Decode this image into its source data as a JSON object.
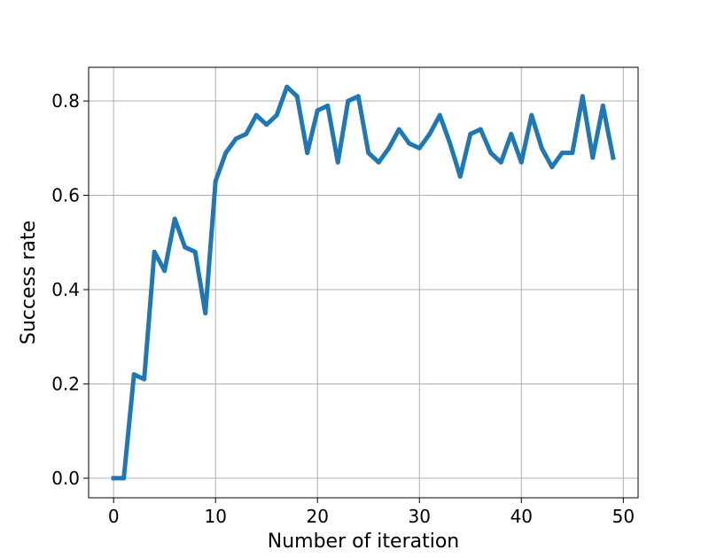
{
  "chart_data": {
    "type": "line",
    "title": "",
    "xlabel": "Number of iteration",
    "ylabel": "Success rate",
    "xlim": [
      -2.45,
      51.45
    ],
    "ylim": [
      -0.0415,
      0.8715
    ],
    "xticks": [
      0,
      10,
      20,
      30,
      40,
      50
    ],
    "yticks": [
      0.0,
      0.2,
      0.4,
      0.6,
      0.8
    ],
    "xtick_labels": [
      "0",
      "10",
      "20",
      "30",
      "40",
      "50"
    ],
    "ytick_labels": [
      "0.0",
      "0.2",
      "0.4",
      "0.6",
      "0.8"
    ],
    "grid": true,
    "legend": "none",
    "series": [
      {
        "color": "#1f77b4",
        "x": [
          0,
          1,
          2,
          3,
          4,
          5,
          6,
          7,
          8,
          9,
          10,
          11,
          12,
          13,
          14,
          15,
          16,
          17,
          18,
          19,
          20,
          21,
          22,
          23,
          24,
          25,
          26,
          27,
          28,
          29,
          30,
          31,
          32,
          33,
          34,
          35,
          36,
          37,
          38,
          39,
          40,
          41,
          42,
          43,
          44,
          45,
          46,
          47,
          48,
          49
        ],
        "values": [
          0.0,
          0.0,
          0.22,
          0.21,
          0.48,
          0.44,
          0.55,
          0.49,
          0.48,
          0.35,
          0.63,
          0.69,
          0.72,
          0.73,
          0.77,
          0.75,
          0.77,
          0.83,
          0.81,
          0.69,
          0.78,
          0.79,
          0.67,
          0.8,
          0.81,
          0.69,
          0.67,
          0.7,
          0.74,
          0.71,
          0.7,
          0.73,
          0.77,
          0.71,
          0.64,
          0.73,
          0.74,
          0.69,
          0.67,
          0.73,
          0.67,
          0.77,
          0.7,
          0.66,
          0.69,
          0.69,
          0.81,
          0.68,
          0.79,
          0.68
        ]
      }
    ]
  }
}
